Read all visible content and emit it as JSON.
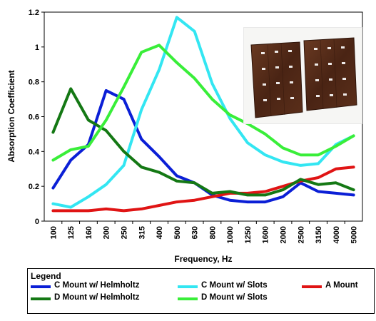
{
  "chart_data": {
    "type": "line",
    "title": "",
    "xlabel": "Frequency, Hz",
    "ylabel": "Absorption Coefficient",
    "ylim": [
      0,
      1.2
    ],
    "yticks": [
      "0",
      "0.2",
      "0.4",
      "0.6",
      "0.8",
      "1",
      "1.2"
    ],
    "grid": false,
    "categories": [
      "100",
      "125",
      "160",
      "200",
      "250",
      "315",
      "400",
      "500",
      "630",
      "800",
      "1000",
      "1250",
      "1600",
      "2000",
      "2500",
      "3150",
      "4000",
      "5000"
    ],
    "series": [
      {
        "name": "C Mount w/ Helmholtz",
        "color": "#0b1fd6",
        "values": [
          0.19,
          0.35,
          0.44,
          0.75,
          0.7,
          0.47,
          0.37,
          0.26,
          0.22,
          0.15,
          0.12,
          0.11,
          0.11,
          0.14,
          0.22,
          0.17,
          0.16,
          0.15
        ]
      },
      {
        "name": "C Mount w/ Slots",
        "color": "#33e6f2",
        "values": [
          0.1,
          0.08,
          0.14,
          0.21,
          0.32,
          0.64,
          0.87,
          1.17,
          1.09,
          0.79,
          0.59,
          0.45,
          0.38,
          0.34,
          0.32,
          0.33,
          0.44,
          0.49
        ]
      },
      {
        "name": "A Mount",
        "color": "#e01414",
        "values": [
          0.06,
          0.06,
          0.06,
          0.07,
          0.06,
          0.07,
          0.09,
          0.11,
          0.12,
          0.14,
          0.16,
          0.16,
          0.17,
          0.2,
          0.23,
          0.25,
          0.3,
          0.31
        ]
      },
      {
        "name": "D Mount w/ Helmholtz",
        "color": "#147814",
        "values": [
          0.51,
          0.76,
          0.58,
          0.52,
          0.4,
          0.31,
          0.28,
          0.23,
          0.22,
          0.16,
          0.17,
          0.15,
          0.15,
          0.18,
          0.24,
          0.21,
          0.22,
          0.18
        ]
      },
      {
        "name": "D Mount w/ Slots",
        "color": "#39ee39",
        "values": [
          0.35,
          0.41,
          0.43,
          0.58,
          0.77,
          0.97,
          1.01,
          0.91,
          0.82,
          0.7,
          0.61,
          0.56,
          0.5,
          0.42,
          0.38,
          0.38,
          0.43,
          0.49
        ]
      }
    ],
    "legend": {
      "title": "Legend",
      "placement": "bottom",
      "entries": [
        {
          "label": "C Mount w/ Helmholtz",
          "color": "#0b1fd6"
        },
        {
          "label": "C Mount w/ Slots",
          "color": "#33e6f2"
        },
        {
          "label": "A Mount",
          "color": "#e01414"
        },
        {
          "label": "D Mount w/ Helmholtz",
          "color": "#147814"
        },
        {
          "label": "D Mount w/ Slots",
          "color": "#39ee39"
        }
      ]
    },
    "inset": {
      "description_icon": "wood-panel-sample-photo"
    }
  }
}
